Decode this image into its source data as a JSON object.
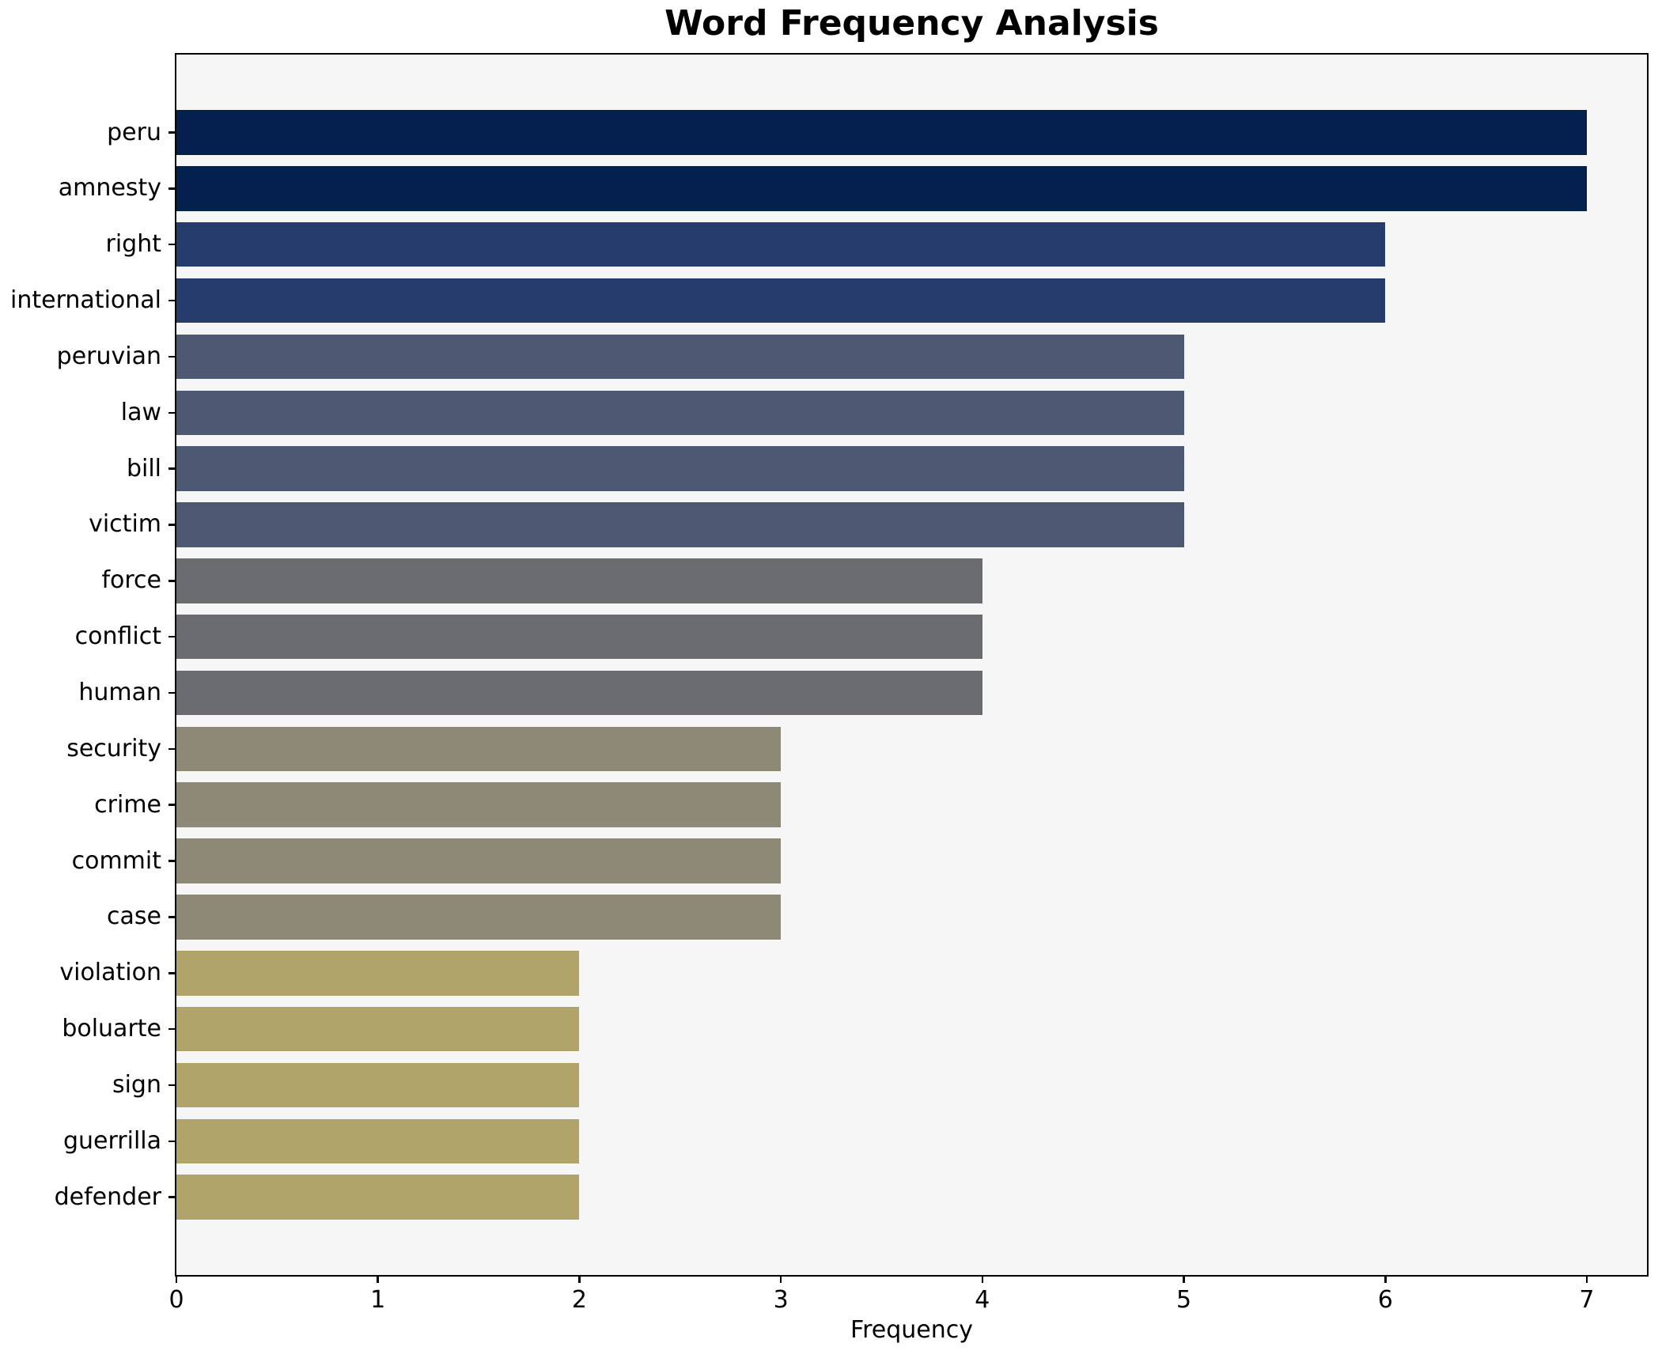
{
  "chart_data": {
    "type": "bar",
    "orientation": "horizontal",
    "title": "Word Frequency Analysis",
    "xlabel": "Frequency",
    "ylabel": "",
    "categories": [
      "peru",
      "amnesty",
      "right",
      "international",
      "peruvian",
      "law",
      "bill",
      "victim",
      "force",
      "conflict",
      "human",
      "security",
      "crime",
      "commit",
      "case",
      "violation",
      "boluarte",
      "sign",
      "guerrilla",
      "defender"
    ],
    "values": [
      7,
      7,
      6,
      6,
      5,
      5,
      5,
      5,
      4,
      4,
      4,
      3,
      3,
      3,
      3,
      2,
      2,
      2,
      2,
      2
    ],
    "xticks": [
      0,
      1,
      2,
      3,
      4,
      5,
      6,
      7
    ],
    "xlim": [
      0,
      7.3
    ],
    "grid": false,
    "legend": false,
    "colors": {
      "value_7": "#03214c",
      "value_6": "#253c6d",
      "value_5": "#4d5872",
      "value_4": "#6a6c70",
      "value_3": "#8e8876",
      "value_2": "#b0a46a",
      "plot_background": "#f6f6f7",
      "axis": "#000000",
      "text": "#000000"
    }
  }
}
